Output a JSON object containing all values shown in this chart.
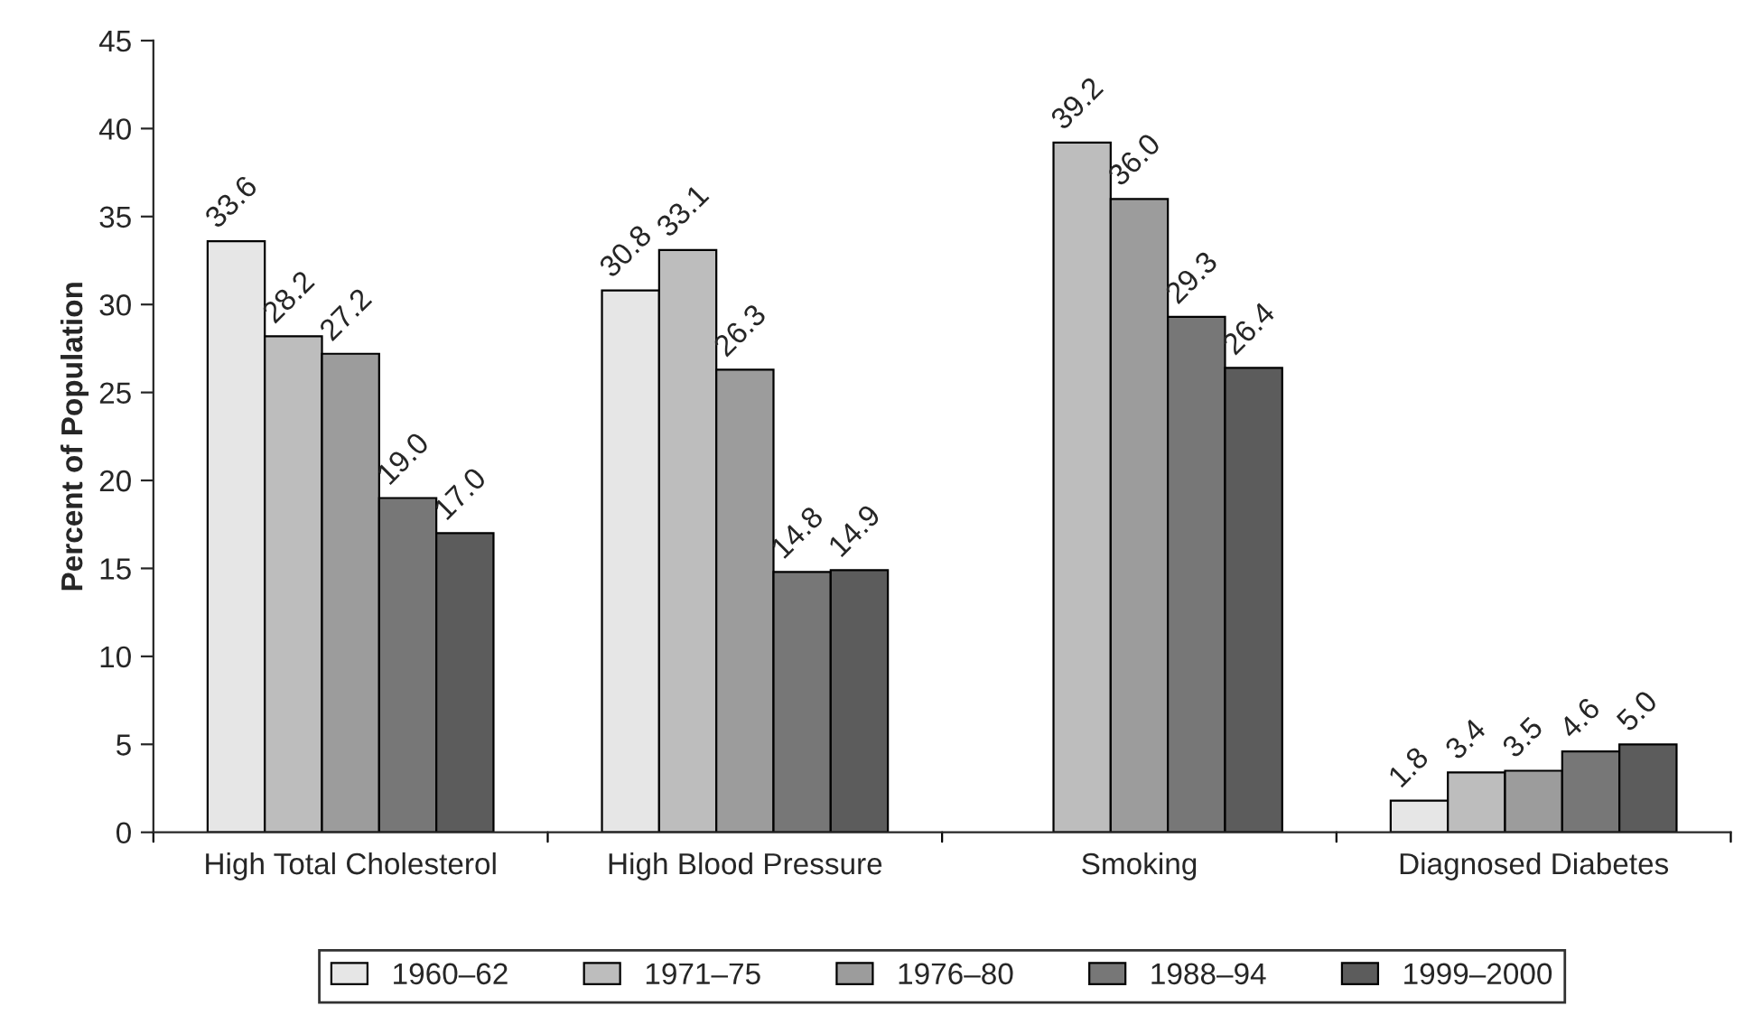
{
  "chart_data": {
    "type": "bar",
    "ylabel": "Percent of Population",
    "categories": [
      "High Total Cholesterol",
      "High Blood Pressure",
      "Smoking",
      "Diagnosed Diabetes"
    ],
    "series": [
      {
        "name": "1960–62",
        "color": "#e6e6e6",
        "values": [
          33.6,
          30.8,
          null,
          1.8
        ],
        "value_labels": [
          "33.6",
          "30.8",
          null,
          "1.8"
        ]
      },
      {
        "name": "1971–75",
        "color": "#bdbdbd",
        "values": [
          28.2,
          33.1,
          39.2,
          3.4
        ],
        "value_labels": [
          "28.2",
          "33.1",
          "39.2",
          "3.4"
        ]
      },
      {
        "name": "1976–80",
        "color": "#9c9c9c",
        "values": [
          27.2,
          26.3,
          36.0,
          3.5
        ],
        "value_labels": [
          "27.2",
          "26.3",
          "36.0",
          "3.5"
        ]
      },
      {
        "name": "1988–94",
        "color": "#777777",
        "values": [
          19.0,
          14.8,
          29.3,
          4.6
        ],
        "value_labels": [
          "19.0",
          "14.8",
          "29.3",
          "4.6"
        ]
      },
      {
        "name": "1999–2000",
        "color": "#5c5c5c",
        "values": [
          17.0,
          14.9,
          26.4,
          5.0
        ],
        "value_labels": [
          "17.0",
          "14.9",
          "26.4",
          "5.0"
        ]
      }
    ],
    "ylim": [
      0,
      45
    ],
    "yticks": [
      0,
      5,
      10,
      15,
      20,
      25,
      30,
      35,
      40,
      45
    ],
    "grid": false,
    "legend": "bottom"
  }
}
